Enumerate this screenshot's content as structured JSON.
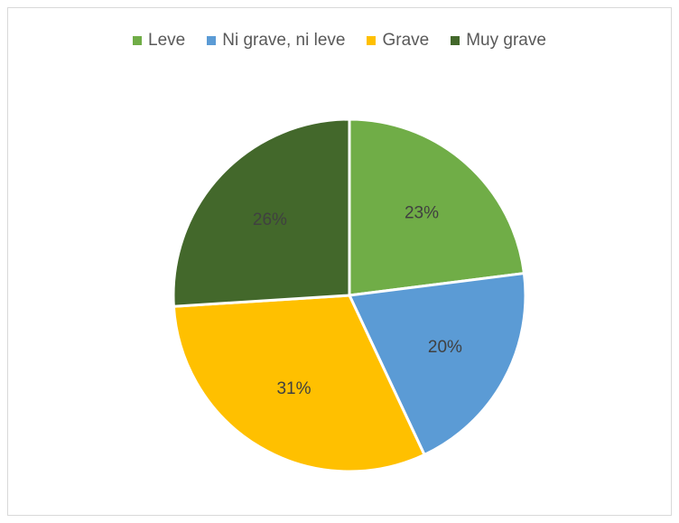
{
  "chart_data": {
    "type": "pie",
    "title": "",
    "categories": [
      "Leve",
      "Ni grave, ni leve",
      "Grave",
      "Muy grave"
    ],
    "values": [
      23,
      20,
      31,
      26
    ],
    "labels": [
      "23%",
      "20%",
      "31%",
      "26%"
    ],
    "colors": [
      "#70ad47",
      "#5b9bd5",
      "#ffc000",
      "#43682b"
    ],
    "legend_position": "top"
  }
}
